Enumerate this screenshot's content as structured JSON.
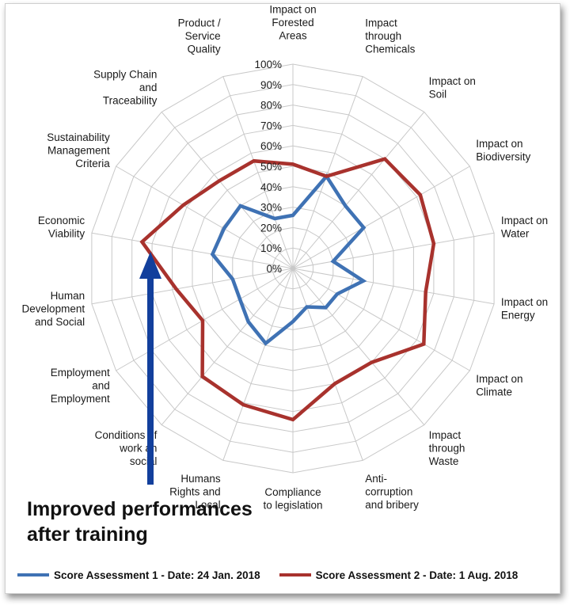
{
  "chart_data": {
    "type": "radar",
    "axes": [
      "Impact on\nForested\nAreas",
      "Impact\nthrough\nChemicals",
      "Impact on\nSoil",
      "Impact on\nBiodiversity",
      "Impact on\nWater",
      "Impact on\nEnergy",
      "Impact on\nClimate",
      "Impact\nthrough\nWaste",
      "Anti-\ncorruption\nand bribery",
      "Compliance\nto legislation",
      "Humans\nRights and\nLocal",
      "Conditions of\nwork an\nsocial",
      "Employment\nand\nEmployment",
      "Human\nDevelopment\nand Social",
      "Economic\nViability",
      "Sustainability\nManagement\nCriteria",
      "Supply Chain\nand\nTraceability",
      "Product /\nService\nQuality"
    ],
    "scale_ticks": [
      "0%",
      "10%",
      "20%",
      "30%",
      "40%",
      "50%",
      "60%",
      "70%",
      "80%",
      "90%",
      "100%"
    ],
    "range": [
      0,
      100
    ],
    "series": [
      {
        "name": "Score Assessment 1 - Date: 24 Jan. 2018",
        "color": "#3f72b4",
        "values": [
          26,
          48,
          40,
          40,
          20,
          35,
          25,
          25,
          20,
          26,
          39,
          34,
          30,
          30,
          40,
          39,
          40,
          26
        ]
      },
      {
        "name": "Score Assessment 2 - Date: 1 Aug. 2018",
        "color": "#a8322d",
        "values": [
          51,
          48,
          70,
          72,
          70,
          66,
          74,
          60,
          60,
          74,
          71,
          69,
          51,
          58,
          75,
          62,
          56,
          56
        ]
      }
    ]
  },
  "annotation": {
    "line1": "Improved performances",
    "line2": "after training",
    "arrow_color": "#123f9c"
  },
  "legend": [
    {
      "label": "Score Assessment 1 - Date: 24 Jan. 2018",
      "color": "#3f72b4"
    },
    {
      "label": "Score Assessment 2 - Date: 1 Aug. 2018",
      "color": "#a8322d"
    }
  ]
}
